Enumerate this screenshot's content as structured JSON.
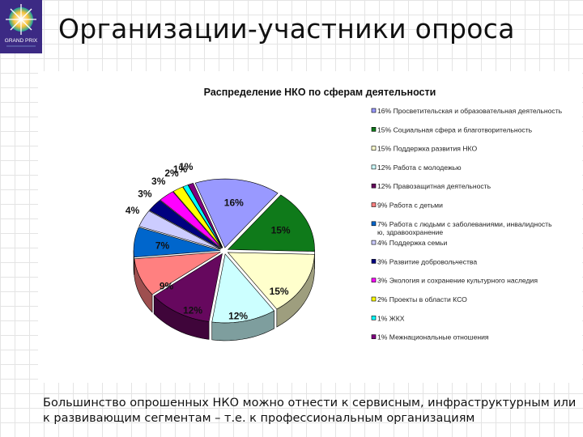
{
  "slide": {
    "title": "Организации-участники опроса",
    "caption_lines": [
      "Большинство опрошенных НКО можно отнести к сервисным, инфраструктурным или",
      "к развивающим сегментам – т.е. к профессиональным организациям"
    ]
  },
  "logo": {
    "icon": "grand-prix-star-icon",
    "text_line1": "GRAND PRIX"
  },
  "chart_data": {
    "type": "pie",
    "style": "3d-exploded",
    "title": "Распределение НКО по сферам деятельности",
    "legend_position": "right",
    "slices": [
      {
        "label": "16% Просветительская и образовательная деятельность",
        "value": 16,
        "display": "16%",
        "color": "#9999ff"
      },
      {
        "label": "15% Социальная сфера и благотворительность",
        "value": 15,
        "display": "15%",
        "color": "#0f7a1a"
      },
      {
        "label": "15% Поддержка развития НКО",
        "value": 15,
        "display": "15%",
        "color": "#ffffcc"
      },
      {
        "label": "12% Работа с молодежью",
        "value": 12,
        "display": "12%",
        "color": "#ccffff"
      },
      {
        "label": "12% Правозащитная деятельность",
        "value": 12,
        "display": "12%",
        "color": "#66085e"
      },
      {
        "label": "9% Работа с детьми",
        "value": 9,
        "display": "9%",
        "color": "#ff8080"
      },
      {
        "label": "7% Работа с людьми с заболеваниями, инвалидностью, здравоохранение",
        "value": 7,
        "display": "7%",
        "color": "#0066cc"
      },
      {
        "label": "4% Поддержка семьи",
        "value": 4,
        "display": "4%",
        "color": "#ccccff"
      },
      {
        "label": "3% Развитие добровольчества",
        "value": 3,
        "display": "3%",
        "color": "#000080"
      },
      {
        "label": "3% Экология и сохранение культурного наследия",
        "value": 3,
        "display": "3%",
        "color": "#ff00ff"
      },
      {
        "label": "2% Проекты в области КСО",
        "value": 2,
        "display": "2%",
        "color": "#ffff00"
      },
      {
        "label": "1% ЖКХ",
        "value": 1,
        "display": "1%",
        "color": "#00ffff"
      },
      {
        "label": "1% Межнациональные отношения",
        "value": 1,
        "display": "1%",
        "color": "#800080"
      }
    ]
  }
}
